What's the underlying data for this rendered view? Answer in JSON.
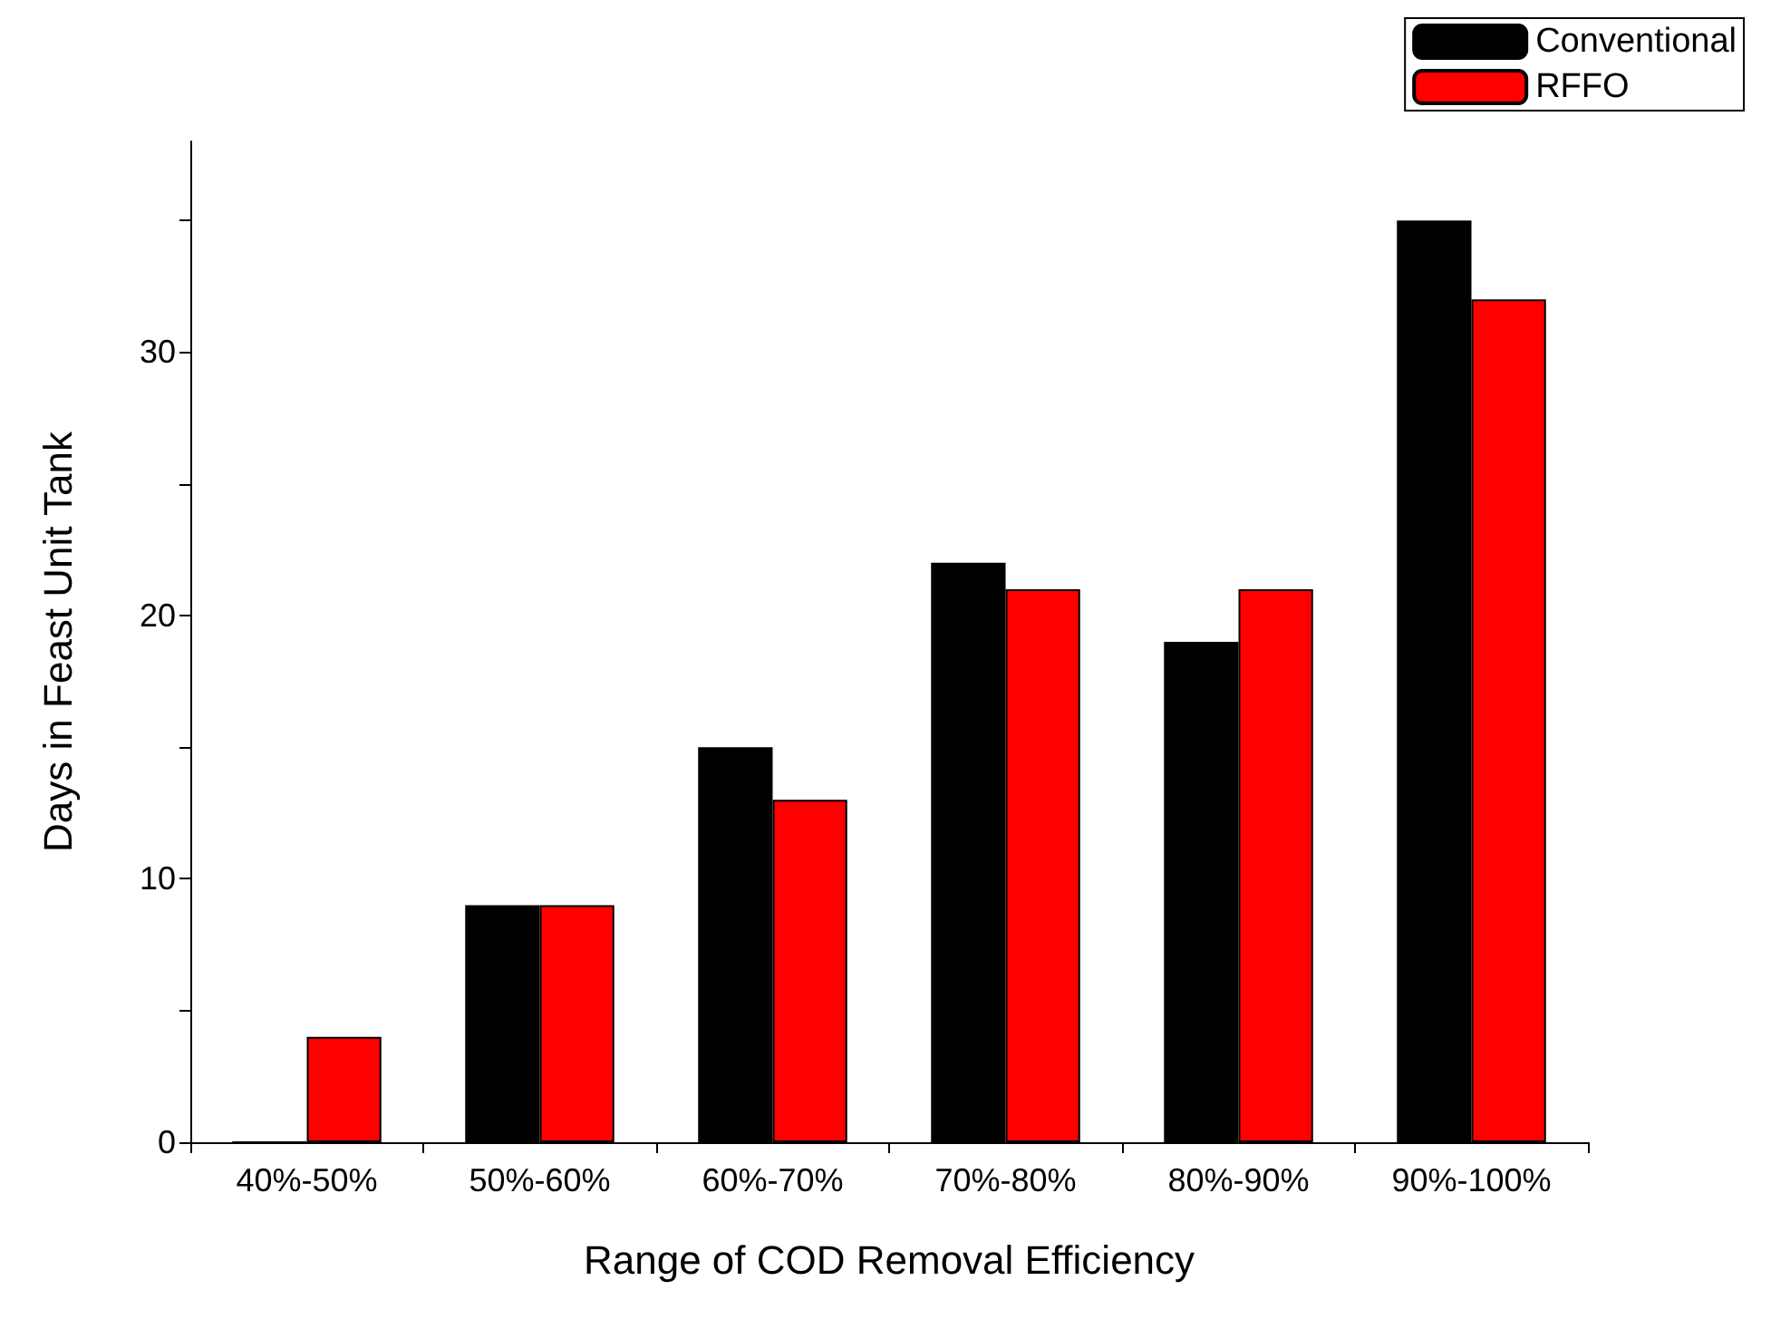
{
  "chart_data": {
    "type": "bar",
    "xlabel": "Range of COD Removal Efficiency",
    "ylabel": "Days in Feast Unit Tank",
    "categories": [
      "40%-50%",
      "50%-60%",
      "60%-70%",
      "70%-80%",
      "80%-90%",
      "90%-100%"
    ],
    "series": [
      {
        "name": "Conventional",
        "color": "#000000",
        "values": [
          0,
          9,
          15,
          22,
          19,
          35
        ]
      },
      {
        "name": "RFFO",
        "color": "#ff0000",
        "values": [
          4,
          9,
          13,
          21,
          21,
          32
        ]
      }
    ],
    "ylim": [
      0,
      38
    ],
    "yticks": [
      0,
      {
        "value": 5,
        "label": null
      },
      10,
      {
        "value": 15,
        "label": null
      },
      20,
      {
        "value": 25,
        "label": null
      },
      30,
      {
        "value": 35,
        "label": null
      }
    ],
    "grid": false,
    "legend": "top right"
  }
}
